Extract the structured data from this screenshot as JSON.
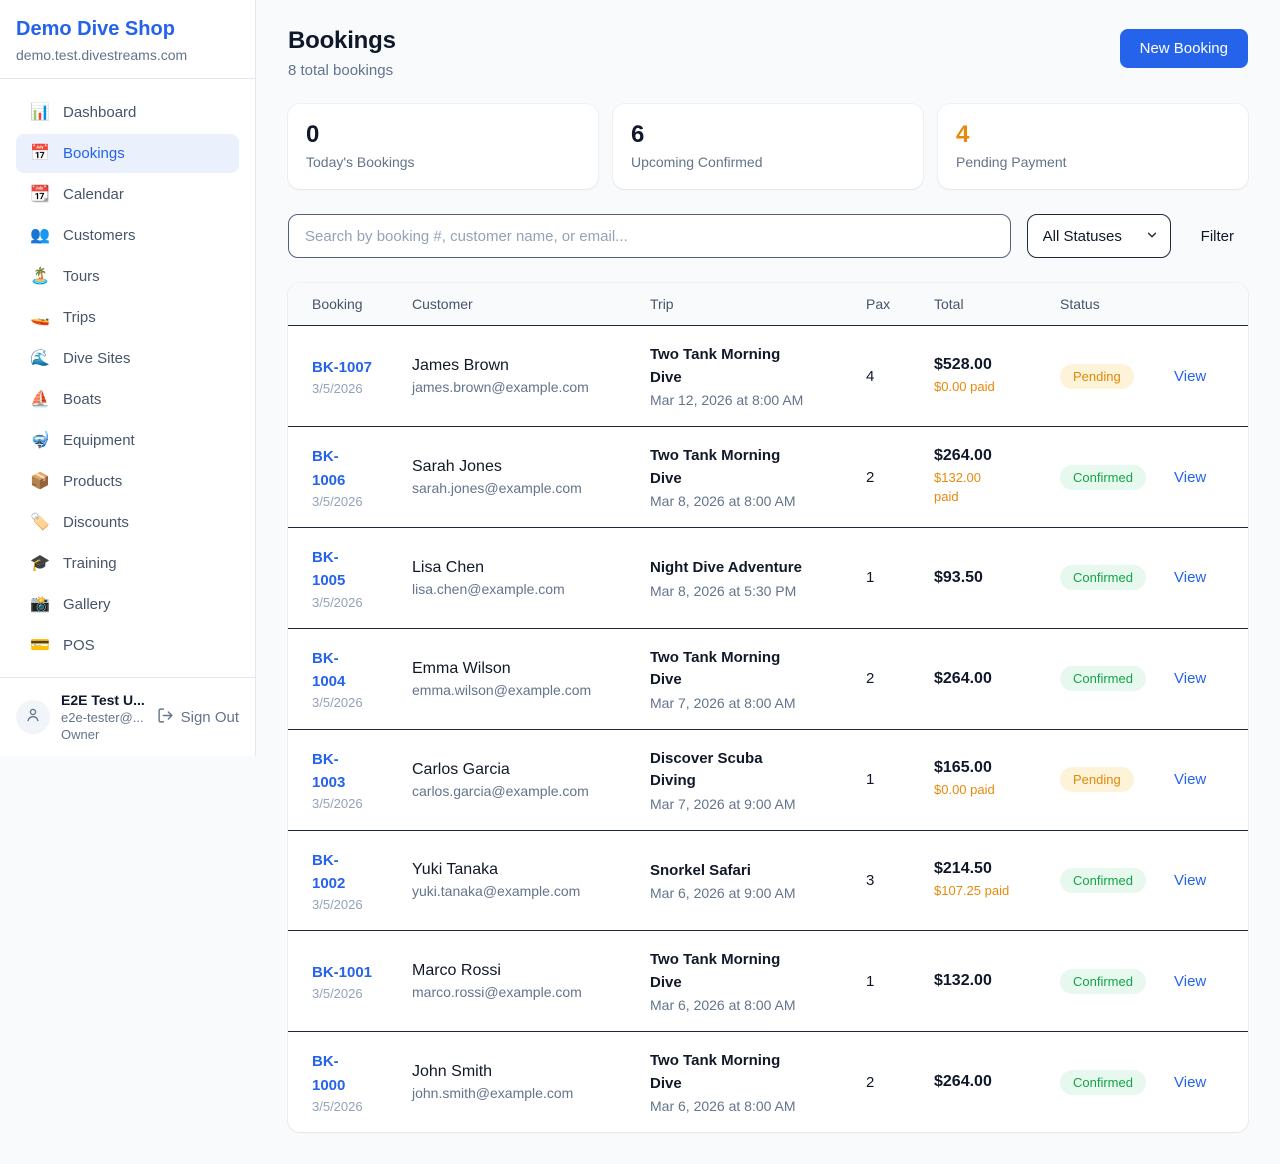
{
  "colors": {
    "accent_blue": "#2563eb",
    "orange": "#e8890c",
    "pending_badge_bg": "#fdf3d8",
    "pending_badge_text": "#dd8a0b",
    "confirmed_badge_bg": "#e7f8ee",
    "confirmed_badge_text": "#16a34a"
  },
  "sidebar": {
    "shop_name": "Demo Dive Shop",
    "shop_domain": "demo.test.divestreams.com",
    "items": [
      {
        "icon": "📊",
        "label": "Dashboard",
        "active": false
      },
      {
        "icon": "📅",
        "label": "Bookings",
        "active": true
      },
      {
        "icon": "📆",
        "label": "Calendar",
        "active": false
      },
      {
        "icon": "👥",
        "label": "Customers",
        "active": false
      },
      {
        "icon": "🏝️",
        "label": "Tours",
        "active": false
      },
      {
        "icon": "🚤",
        "label": "Trips",
        "active": false
      },
      {
        "icon": "🌊",
        "label": "Dive Sites",
        "active": false
      },
      {
        "icon": "⛵",
        "label": "Boats",
        "active": false
      },
      {
        "icon": "🤿",
        "label": "Equipment",
        "active": false
      },
      {
        "icon": "📦",
        "label": "Products",
        "active": false
      },
      {
        "icon": "🏷️",
        "label": "Discounts",
        "active": false
      },
      {
        "icon": "🎓",
        "label": "Training",
        "active": false
      },
      {
        "icon": "📸",
        "label": "Gallery",
        "active": false
      },
      {
        "icon": "💳",
        "label": "POS",
        "active": false
      }
    ],
    "user": {
      "name": "E2E Test U...",
      "email": "e2e-tester@...",
      "role": "Owner",
      "sign_out_label": "Sign Out"
    }
  },
  "header": {
    "title": "Bookings",
    "subtitle": "8 total bookings",
    "new_booking_label": "New Booking"
  },
  "stats": [
    {
      "value": "0",
      "label": "Today's Bookings",
      "highlight": false
    },
    {
      "value": "6",
      "label": "Upcoming Confirmed",
      "highlight": false
    },
    {
      "value": "4",
      "label": "Pending Payment",
      "highlight": true
    }
  ],
  "filters": {
    "search_placeholder": "Search by booking #, customer name, or email...",
    "status_selected": "All Statuses",
    "filter_label": "Filter"
  },
  "table": {
    "columns": [
      "Booking",
      "Customer",
      "Trip",
      "Pax",
      "Total",
      "Status"
    ],
    "rows": [
      {
        "number": "BK-1007",
        "date": "3/5/2026",
        "customer_name": "James Brown",
        "customer_email": "james.brown@example.com",
        "trip_name": "Two Tank Morning\nDive",
        "trip_datetime": "Mar 12, 2026 at 8:00 AM",
        "pax": "4",
        "total": "$528.00",
        "paid": "$0.00 paid",
        "status": "Pending",
        "view_label": "View"
      },
      {
        "number": "BK-\n1006",
        "date": "3/5/2026",
        "customer_name": "Sarah Jones",
        "customer_email": "sarah.jones@example.com",
        "trip_name": "Two Tank Morning\nDive",
        "trip_datetime": "Mar 8, 2026 at 8:00 AM",
        "pax": "2",
        "total": "$264.00",
        "paid": "$132.00\npaid",
        "status": "Confirmed",
        "view_label": "View"
      },
      {
        "number": "BK-\n1005",
        "date": "3/5/2026",
        "customer_name": "Lisa Chen",
        "customer_email": "lisa.chen@example.com",
        "trip_name": "Night Dive Adventure",
        "trip_datetime": "Mar 8, 2026 at 5:30 PM",
        "pax": "1",
        "total": "$93.50",
        "paid": "",
        "status": "Confirmed",
        "view_label": "View"
      },
      {
        "number": "BK-\n1004",
        "date": "3/5/2026",
        "customer_name": "Emma Wilson",
        "customer_email": "emma.wilson@example.com",
        "trip_name": "Two Tank Morning\nDive",
        "trip_datetime": "Mar 7, 2026 at 8:00 AM",
        "pax": "2",
        "total": "$264.00",
        "paid": "",
        "status": "Confirmed",
        "view_label": "View"
      },
      {
        "number": "BK-\n1003",
        "date": "3/5/2026",
        "customer_name": "Carlos Garcia",
        "customer_email": "carlos.garcia@example.com",
        "trip_name": "Discover Scuba\nDiving",
        "trip_datetime": "Mar 7, 2026 at 9:00 AM",
        "pax": "1",
        "total": "$165.00",
        "paid": "$0.00 paid",
        "status": "Pending",
        "view_label": "View"
      },
      {
        "number": "BK-\n1002",
        "date": "3/5/2026",
        "customer_name": "Yuki Tanaka",
        "customer_email": "yuki.tanaka@example.com",
        "trip_name": "Snorkel Safari",
        "trip_datetime": "Mar 6, 2026 at 9:00 AM",
        "pax": "3",
        "total": "$214.50",
        "paid": "$107.25 paid",
        "status": "Confirmed",
        "view_label": "View"
      },
      {
        "number": "BK-1001",
        "date": "3/5/2026",
        "customer_name": "Marco Rossi",
        "customer_email": "marco.rossi@example.com",
        "trip_name": "Two Tank Morning\nDive",
        "trip_datetime": "Mar 6, 2026 at 8:00 AM",
        "pax": "1",
        "total": "$132.00",
        "paid": "",
        "status": "Confirmed",
        "view_label": "View"
      },
      {
        "number": "BK-\n1000",
        "date": "3/5/2026",
        "customer_name": "John Smith",
        "customer_email": "john.smith@example.com",
        "trip_name": "Two Tank Morning\nDive",
        "trip_datetime": "Mar 6, 2026 at 8:00 AM",
        "pax": "2",
        "total": "$264.00",
        "paid": "",
        "status": "Confirmed",
        "view_label": "View"
      }
    ]
  }
}
